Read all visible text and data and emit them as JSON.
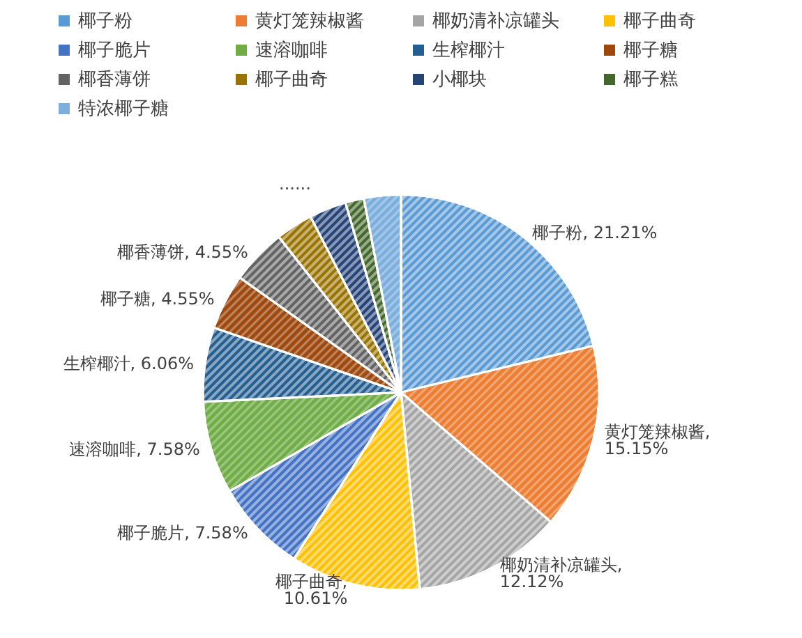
{
  "chart_data": {
    "type": "pie",
    "categories": [
      "椰子粉",
      "黄灯笼辣椒酱",
      "椰奶清补凉罐头",
      "椰子曲奇",
      "椰子脆片",
      "速溶咖啡",
      "生榨椰汁",
      "椰子糖",
      "椰香薄饼",
      "椰子曲奇",
      "小椰块",
      "椰子糕",
      "特浓椰子糖"
    ],
    "values": [
      21.21,
      15.15,
      12.12,
      10.61,
      7.58,
      7.58,
      6.06,
      4.55,
      4.55,
      3.03,
      3.03,
      1.52,
      3.01
    ],
    "value_labels": [
      ", 21.21%",
      ", 15.15%",
      ", 12.12%",
      ", 10.61%",
      ", 7.58%",
      ", 7.58%",
      ", 6.06%",
      ", 4.55%",
      ", 4.55%",
      null,
      null,
      null,
      null
    ],
    "colors": [
      "#5b9bd5",
      "#ed7d31",
      "#a5a5a5",
      "#ffc000",
      "#4472c4",
      "#70ad47",
      "#255e91",
      "#9e480e",
      "#636363",
      "#997300",
      "#264478",
      "#43682b",
      "#7cafdd"
    ],
    "annotations": [
      "......"
    ],
    "legend": "top"
  }
}
